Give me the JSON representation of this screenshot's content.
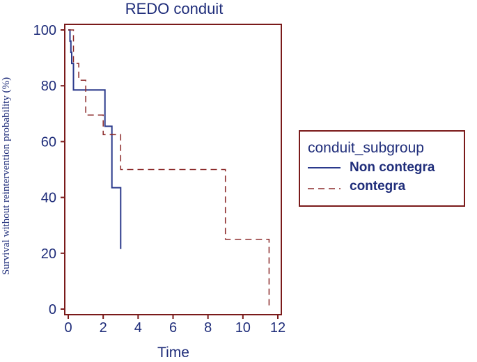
{
  "chart_data": {
    "type": "line",
    "subtype": "step",
    "title": "REDO conduit",
    "xlabel": "Time",
    "ylabel": "Survival without reintervention probability (%)",
    "xlim": [
      -0.2,
      12.2
    ],
    "ylim": [
      -2,
      102
    ],
    "xticks": [
      "0",
      "2",
      "4",
      "6",
      "8",
      "10",
      "12"
    ],
    "yticks": [
      "0",
      "20",
      "40",
      "60",
      "80",
      "100"
    ],
    "grid": false,
    "legend": {
      "title": "conduit_subgroup",
      "position": "right"
    },
    "series": [
      {
        "name": "Non contegra",
        "color": "#2b3a8c",
        "style": "solid",
        "x": [
          0,
          0.1,
          0.1,
          0.15,
          0.15,
          0.2,
          0.2,
          0.3,
          0.3,
          2.1,
          2.1,
          2.5,
          2.5,
          3.0,
          3.0
        ],
        "y": [
          100,
          100,
          96,
          96,
          92,
          92,
          88,
          88,
          78.5,
          78.5,
          65.5,
          65.5,
          43.5,
          43.5,
          21.5
        ]
      },
      {
        "name": "contegra",
        "color": "#8b2a2a",
        "style": "dashed",
        "x": [
          0,
          0.3,
          0.3,
          0.6,
          0.6,
          1.0,
          1.0,
          2.0,
          2.0,
          3.0,
          3.0,
          9.0,
          9.0,
          11.5,
          11.5
        ],
        "y": [
          100,
          100,
          88,
          88,
          82,
          82,
          69.5,
          69.5,
          62.5,
          62.5,
          50,
          50,
          25,
          25,
          0
        ]
      }
    ]
  }
}
